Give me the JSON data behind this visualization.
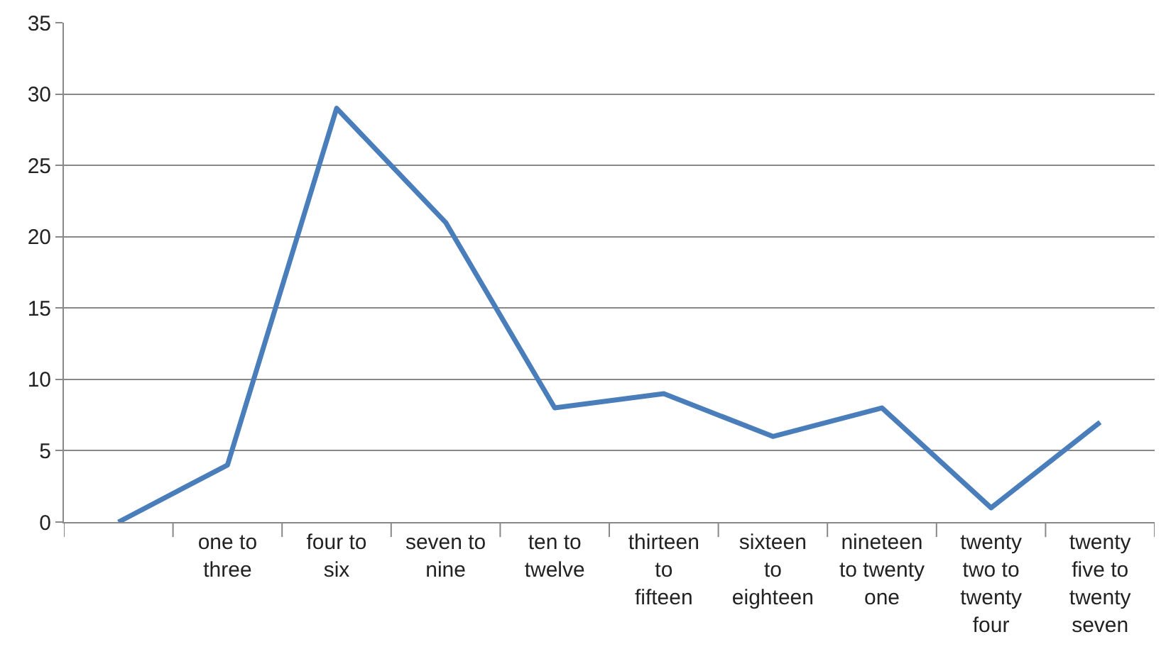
{
  "chart_data": {
    "type": "line",
    "categories": [
      null,
      "one to three",
      "four to six",
      "seven to nine",
      "ten to twelve",
      "thirteen to fifteen",
      "sixteen to eighteen",
      "nineteen to twenty one",
      "twenty two to twenty four",
      "twenty five to twenty seven"
    ],
    "series": [
      {
        "color": "#4a7ebb",
        "values": [
          0,
          4,
          29,
          21,
          8,
          9,
          6,
          8,
          1,
          7
        ]
      }
    ],
    "ylim": [
      0,
      35
    ],
    "yticks": [
      0,
      5,
      10,
      15,
      20,
      25,
      30,
      35
    ],
    "grid": "y",
    "legend": false,
    "marker": "none",
    "line_style": "solid"
  }
}
